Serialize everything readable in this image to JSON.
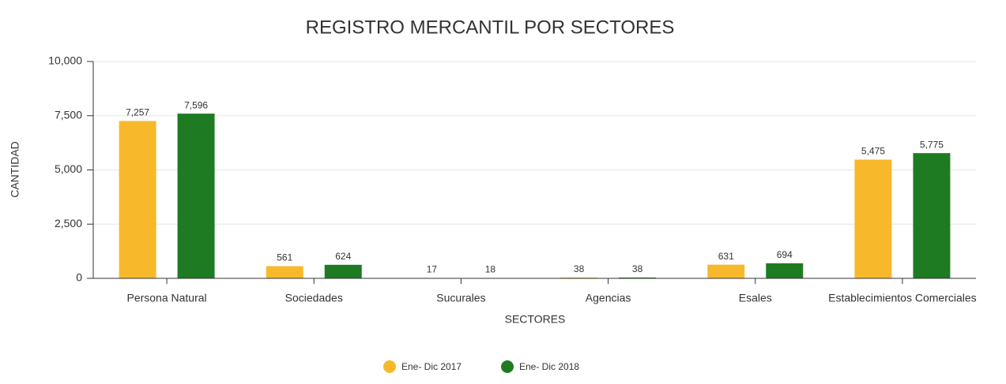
{
  "chart_data": {
    "type": "bar",
    "title": "REGISTRO MERCANTIL POR SECTORES",
    "x_label": "SECTORES",
    "y_label": "CANTIDAD",
    "categories": [
      "Persona Natural",
      "Sociedades",
      "Sucurales",
      "Agencias",
      "Esales",
      "Establecimientos Comerciales"
    ],
    "series": [
      {
        "name": "Ene- Dic 2017",
        "color": "#f7b92b",
        "values": [
          7257,
          561,
          17,
          38,
          631,
          5475
        ],
        "value_labels": [
          "7,257",
          "561",
          "17",
          "38",
          "631",
          "5,475"
        ]
      },
      {
        "name": "Ene- Dic 2018",
        "color": "#1e7b22",
        "values": [
          7596,
          624,
          18,
          38,
          694,
          5775
        ],
        "value_labels": [
          "7,596",
          "624",
          "18",
          "38",
          "694",
          "5,775"
        ]
      }
    ],
    "ylim": [
      0,
      10000
    ],
    "yticks": [
      0,
      {
        "value": 2500,
        "label": "2,500"
      },
      {
        "value": 5000,
        "label": "5,000"
      },
      {
        "value": 7500,
        "label": "7,500"
      },
      {
        "value": 10000,
        "label": "10,000"
      }
    ],
    "grid": true,
    "legend": "bottom"
  }
}
